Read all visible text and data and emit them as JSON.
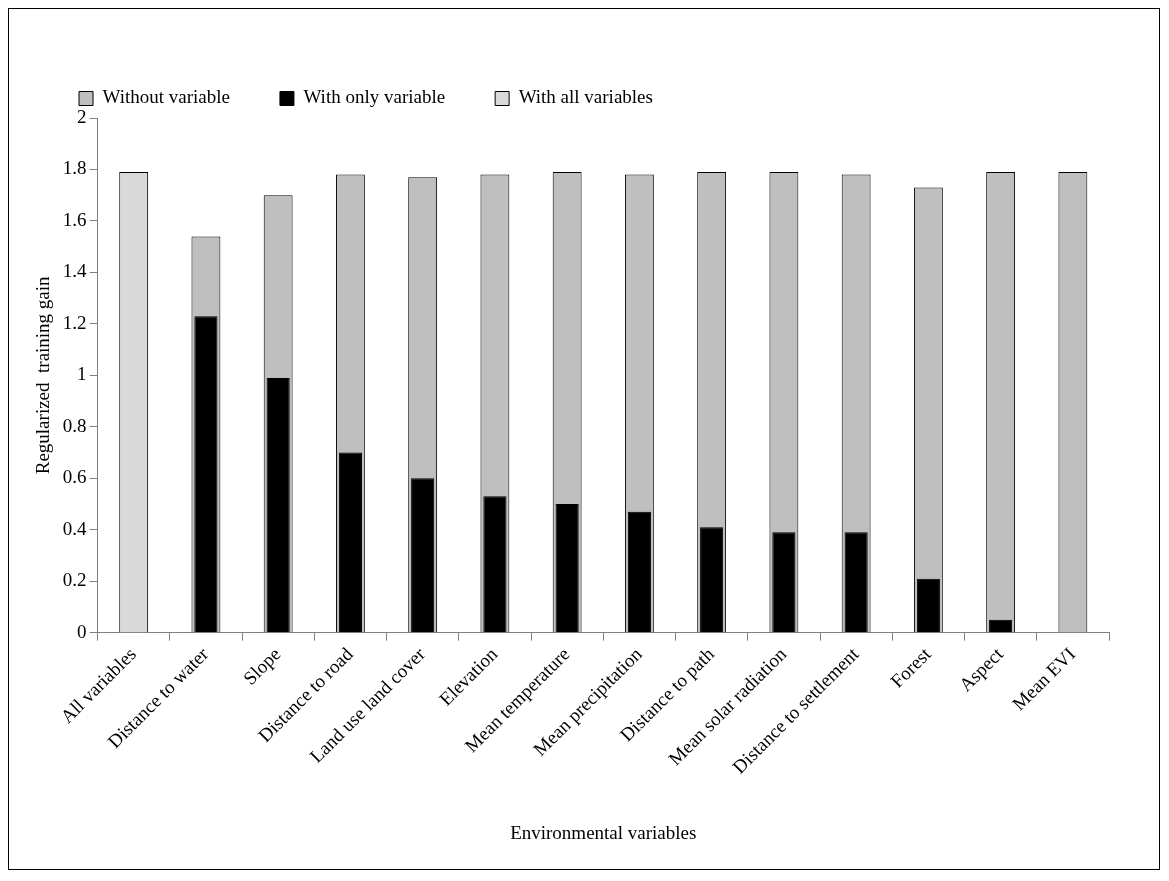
{
  "chart_data": {
    "type": "bar",
    "xlabel": "Environmental variables",
    "ylabel": "Regularized  training gain",
    "categories": [
      "All variables",
      "Distance to water",
      "Slope",
      "Distance to road",
      "Land use land cover",
      "Elevation",
      "Mean temperature",
      "Mean precipitation",
      "Distance to path",
      "Mean solar radiation",
      "Distance to settlement",
      "Forest",
      "Aspect",
      "Mean EVI"
    ],
    "series": [
      {
        "name": "Without variable",
        "color": "#bfbfbf",
        "values": [
          null,
          1.54,
          1.7,
          1.78,
          1.77,
          1.78,
          1.79,
          1.78,
          1.79,
          1.79,
          1.78,
          1.73,
          1.79,
          1.79
        ]
      },
      {
        "name": "With only variable",
        "color": "#000000",
        "values": [
          null,
          1.23,
          0.99,
          0.7,
          0.6,
          0.53,
          0.5,
          0.47,
          0.41,
          0.39,
          0.39,
          0.21,
          0.05,
          0
        ]
      },
      {
        "name": "With all variables",
        "color": "#d9d9d9",
        "values": [
          1.79,
          null,
          null,
          null,
          null,
          null,
          null,
          null,
          null,
          null,
          null,
          null,
          null,
          null
        ]
      }
    ],
    "ylim": [
      0,
      2
    ],
    "yticks": [
      0,
      0.2,
      0.4,
      0.6,
      0.8,
      1,
      1.2,
      1.4,
      1.6,
      1.8,
      2
    ],
    "grid": false,
    "legend": "top"
  }
}
